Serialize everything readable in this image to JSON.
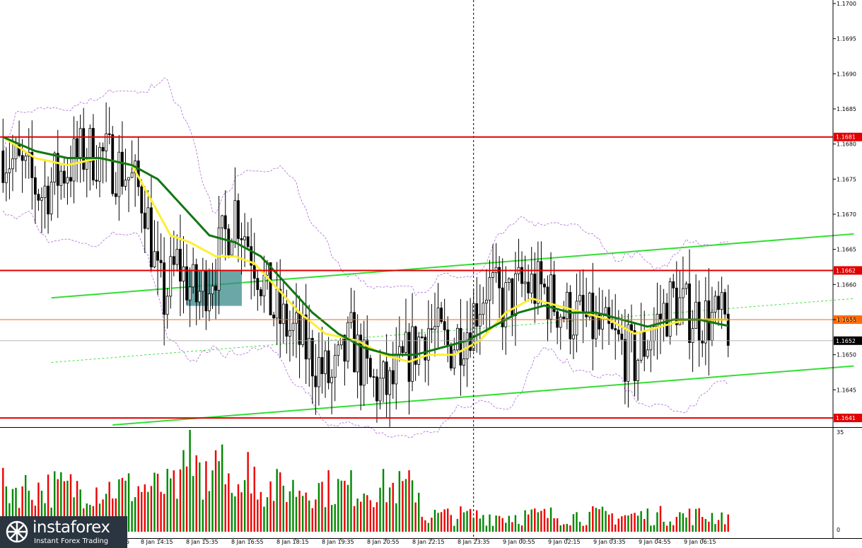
{
  "chart_data": {
    "type": "candlestick",
    "instrument_timeframe": "",
    "price_axis": {
      "ylim": [
        1.164,
        1.17
      ],
      "ticks": [
        "1.1700",
        "1.1695",
        "1.1690",
        "1.1685",
        "1.1680",
        "1.1675",
        "1.1670",
        "1.1665",
        "1.1660",
        "1.1655",
        "1.1650",
        "1.1645"
      ]
    },
    "volume_axis": {
      "ylim": [
        0,
        35
      ],
      "ticks": [
        "35",
        "0"
      ]
    },
    "time_labels": [
      "8 Jan 14:15",
      "8 Jan 15:35",
      "8 Jan 16:55",
      "8 Jan 18:15",
      "8 Jan 19:35",
      "8 Jan 20:55",
      "8 Jan 22:15",
      "8 Jan 23:35",
      "9 Jan 00:55",
      "9 Jan 02:15",
      "9 Jan 03:35",
      "9 Jan 04:55",
      "9 Jan 06:15"
    ],
    "time_label_cut": "5",
    "levels": [
      {
        "price": 1.1681,
        "label": "1.1681",
        "color": "#e00000"
      },
      {
        "price": 1.1662,
        "label": "1.1662",
        "color": "#e00000"
      },
      {
        "price": 1.1641,
        "label": "1.1641",
        "color": "#e00000"
      }
    ],
    "bid_line": {
      "price": 1.1655,
      "label": "1.1655",
      "color": "#ff6a00"
    },
    "current_price": {
      "price": 1.1652,
      "label": "1.1652"
    },
    "price_path": [
      [
        0,
        1.1679
      ],
      [
        6,
        1.1676
      ],
      [
        12,
        1.1673
      ],
      [
        18,
        1.1676
      ],
      [
        26,
        1.1679
      ],
      [
        32,
        1.1678
      ],
      [
        38,
        1.1676
      ],
      [
        44,
        1.1672
      ],
      [
        48,
        1.166
      ],
      [
        50,
        1.1658
      ],
      [
        54,
        1.1663
      ],
      [
        60,
        1.1658
      ],
      [
        66,
        1.1663
      ],
      [
        72,
        1.1671
      ],
      [
        78,
        1.1664
      ],
      [
        84,
        1.1656
      ],
      [
        92,
        1.1652
      ],
      [
        102,
        1.1646
      ],
      [
        108,
        1.1652
      ],
      [
        114,
        1.1646
      ],
      [
        120,
        1.1645
      ],
      [
        126,
        1.165
      ],
      [
        132,
        1.1654
      ],
      [
        138,
        1.1651
      ],
      [
        144,
        1.1654
      ],
      [
        150,
        1.166
      ],
      [
        155,
        1.1657
      ],
      [
        162,
        1.166
      ],
      [
        168,
        1.1659
      ],
      [
        174,
        1.1656
      ],
      [
        180,
        1.1655
      ],
      [
        186,
        1.1653
      ],
      [
        192,
        1.1651
      ],
      [
        196,
        1.1649
      ],
      [
        202,
        1.1654
      ],
      [
        208,
        1.1658
      ],
      [
        212,
        1.1656
      ],
      [
        220,
        1.1655
      ],
      [
        226,
        1.1654
      ]
    ],
    "ma_fast_path": [
      [
        0,
        1.1681
      ],
      [
        10,
        1.1678
      ],
      [
        20,
        1.1677
      ],
      [
        30,
        1.1678
      ],
      [
        40,
        1.1677
      ],
      [
        46,
        1.1672
      ],
      [
        52,
        1.1667
      ],
      [
        58,
        1.1666
      ],
      [
        66,
        1.1664
      ],
      [
        72,
        1.1664
      ],
      [
        78,
        1.1663
      ],
      [
        84,
        1.166
      ],
      [
        92,
        1.1656
      ],
      [
        100,
        1.1653
      ],
      [
        110,
        1.1652
      ],
      [
        118,
        1.165
      ],
      [
        126,
        1.1649
      ],
      [
        132,
        1.165
      ],
      [
        140,
        1.165
      ],
      [
        148,
        1.1652
      ],
      [
        156,
        1.1656
      ],
      [
        164,
        1.1658
      ],
      [
        172,
        1.1657
      ],
      [
        180,
        1.1656
      ],
      [
        188,
        1.1655
      ],
      [
        196,
        1.1653
      ],
      [
        204,
        1.1654
      ],
      [
        212,
        1.1655
      ],
      [
        220,
        1.1655
      ],
      [
        226,
        1.1655
      ]
    ],
    "ma_slow_path": [
      [
        0,
        1.1681
      ],
      [
        10,
        1.1679
      ],
      [
        20,
        1.1678
      ],
      [
        30,
        1.1678
      ],
      [
        40,
        1.1677
      ],
      [
        48,
        1.1675
      ],
      [
        56,
        1.1671
      ],
      [
        64,
        1.1667
      ],
      [
        72,
        1.1666
      ],
      [
        80,
        1.1664
      ],
      [
        88,
        1.166
      ],
      [
        96,
        1.1656
      ],
      [
        104,
        1.1653
      ],
      [
        112,
        1.1651
      ],
      [
        120,
        1.165
      ],
      [
        128,
        1.165
      ],
      [
        136,
        1.1651
      ],
      [
        144,
        1.1652
      ],
      [
        152,
        1.1654
      ],
      [
        160,
        1.1656
      ],
      [
        168,
        1.1657
      ],
      [
        176,
        1.1656
      ],
      [
        184,
        1.1656
      ],
      [
        192,
        1.1655
      ],
      [
        200,
        1.1654
      ],
      [
        208,
        1.1655
      ],
      [
        216,
        1.1655
      ],
      [
        226,
        1.1654
      ]
    ],
    "channel_lines": [
      {
        "name": "",
        "from": [
          15,
          1.16581
        ],
        "to": [
          264,
          1.16672
        ],
        "style": "solid",
        "color": "#33dd33"
      },
      {
        "name": "",
        "from": [
          34,
          1.164
        ],
        "to": [
          264,
          1.16484
        ],
        "style": "solid",
        "color": "#33dd33"
      },
      {
        "name": "",
        "from": [
          15,
          1.16489
        ],
        "to": [
          264,
          1.1658
        ],
        "style": "dashed",
        "color": "#33dd33"
      }
    ],
    "signal_box": {
      "from_bar": 57,
      "to_bar": 74,
      "price_top": 1.1662,
      "price_bottom": 1.1657,
      "color": "#3a8a8a"
    },
    "vertical_marker_bar": 146,
    "bar_count": 226,
    "volume_peak": 35,
    "colors": {
      "bull": "#008800",
      "bear": "#ee0000",
      "ma_fast": "#ffee33",
      "ma_slow": "#117711",
      "bollinger": "#b066dd",
      "candle": "#000000"
    }
  },
  "logo": {
    "name": "instaforex",
    "tagline": "Instant Forex Trading"
  }
}
